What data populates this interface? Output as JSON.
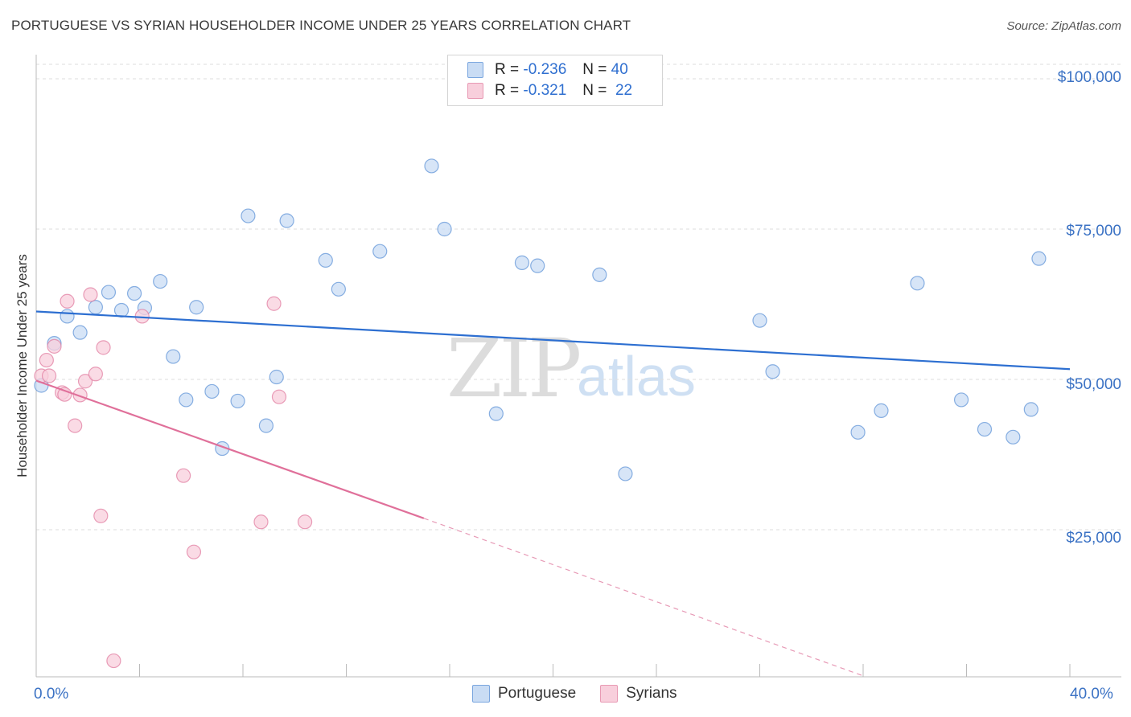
{
  "title": "PORTUGUESE VS SYRIAN HOUSEHOLDER INCOME UNDER 25 YEARS CORRELATION CHART",
  "source": "Source: ZipAtlas.com",
  "watermark": {
    "zip": "ZIP",
    "atlas": "atlas"
  },
  "legend": {
    "r_label": "R =",
    "n_label": "N =",
    "rows": [
      {
        "r": "-0.236",
        "n": "40",
        "color": "#a8c8ee"
      },
      {
        "r": "-0.321",
        "n": "22",
        "color": "#f5b8cc"
      }
    ]
  },
  "bottom_legend": [
    {
      "label": "Portuguese",
      "color": "#a8c8ee"
    },
    {
      "label": "Syrians",
      "color": "#f5b8cc"
    }
  ],
  "chart_data": {
    "type": "scatter",
    "ylabel": "Householder Income Under 25 years",
    "xlim": [
      0,
      40
    ],
    "ylim": [
      0,
      100000
    ],
    "x_tick_labels": [
      "0.0%",
      "40.0%"
    ],
    "y_ticks": [
      {
        "value": 25000,
        "label": "$25,000"
      },
      {
        "value": 50000,
        "label": "$50,000"
      },
      {
        "value": 75000,
        "label": "$75,000"
      },
      {
        "value": 100000,
        "label": "$100,000"
      }
    ],
    "series": [
      {
        "name": "Portuguese",
        "color": "#5a90d6",
        "fill": "#c9dcf4",
        "trend": {
          "x": [
            0,
            40
          ],
          "y": [
            61300,
            51700
          ]
        },
        "points": [
          [
            0.2,
            49000
          ],
          [
            0.7,
            56000
          ],
          [
            1.2,
            60500
          ],
          [
            1.7,
            57800
          ],
          [
            2.3,
            62000
          ],
          [
            2.8,
            64500
          ],
          [
            3.3,
            61500
          ],
          [
            3.8,
            64300
          ],
          [
            4.2,
            61900
          ],
          [
            4.8,
            66300
          ],
          [
            5.3,
            53800
          ],
          [
            5.8,
            46600
          ],
          [
            6.2,
            62000
          ],
          [
            6.8,
            48000
          ],
          [
            7.2,
            38500
          ],
          [
            7.8,
            46400
          ],
          [
            8.2,
            77200
          ],
          [
            8.9,
            42300
          ],
          [
            9.3,
            50400
          ],
          [
            9.7,
            76400
          ],
          [
            11.2,
            69800
          ],
          [
            11.7,
            65000
          ],
          [
            13.3,
            71300
          ],
          [
            15.3,
            85500
          ],
          [
            15.8,
            75000
          ],
          [
            17.8,
            44300
          ],
          [
            18.8,
            69400
          ],
          [
            19.4,
            68900
          ],
          [
            21.8,
            67400
          ],
          [
            22.8,
            34300
          ],
          [
            28.0,
            59800
          ],
          [
            28.5,
            51300
          ],
          [
            31.8,
            41200
          ],
          [
            32.7,
            44800
          ],
          [
            34.1,
            66000
          ],
          [
            35.8,
            46600
          ],
          [
            36.7,
            41700
          ],
          [
            37.8,
            40400
          ],
          [
            38.5,
            45000
          ],
          [
            38.8,
            70100
          ]
        ]
      },
      {
        "name": "Syrians",
        "color": "#e0789c",
        "fill": "#f8cfdc",
        "trend": {
          "x": [
            0,
            15
          ],
          "y": [
            49800,
            26900
          ]
        },
        "trend_ext": {
          "x": [
            15,
            32
          ],
          "y": [
            26900,
            700
          ]
        },
        "points": [
          [
            0.2,
            50600
          ],
          [
            0.4,
            53200
          ],
          [
            0.5,
            50600
          ],
          [
            0.7,
            55500
          ],
          [
            1.0,
            47800
          ],
          [
            1.2,
            63000
          ],
          [
            1.5,
            42300
          ],
          [
            1.7,
            47400
          ],
          [
            1.9,
            49700
          ],
          [
            2.1,
            64100
          ],
          [
            2.3,
            50900
          ],
          [
            2.5,
            27300
          ],
          [
            2.6,
            55300
          ],
          [
            3.0,
            3200
          ],
          [
            4.1,
            60500
          ],
          [
            5.7,
            34000
          ],
          [
            6.1,
            21300
          ],
          [
            8.7,
            26300
          ],
          [
            9.2,
            62600
          ],
          [
            9.4,
            47100
          ],
          [
            10.4,
            26300
          ],
          [
            1.1,
            47500
          ]
        ]
      }
    ]
  }
}
